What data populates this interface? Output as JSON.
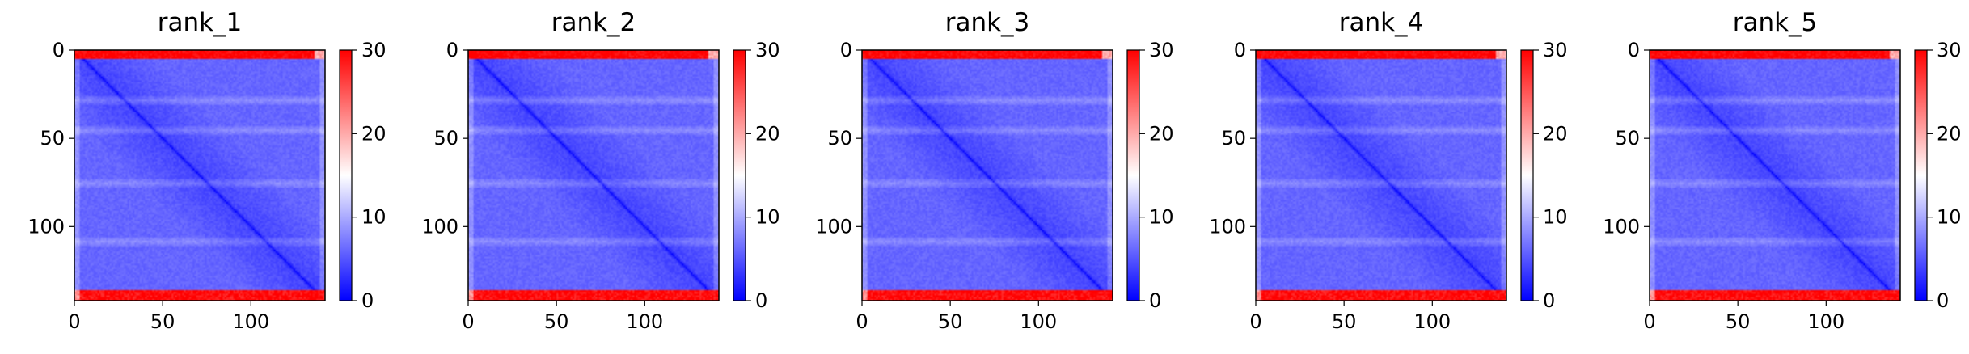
{
  "chart_data": [
    {
      "type": "heatmap",
      "title": "rank_1",
      "x_ticks": [
        "0",
        "50",
        "100"
      ],
      "y_ticks": [
        "0",
        "50",
        "100"
      ],
      "xlim": [
        0,
        142
      ],
      "ylim": [
        142,
        0
      ],
      "colorbar": {
        "min": 0,
        "max": 30,
        "ticks": [
          "0",
          "10",
          "20",
          "30"
        ],
        "colormap": "bwr"
      },
      "pattern": "blue field (~0–8) with bright diagonal band; red rows near top (rows 0–5) and bottom (rows 135–142) at ~30; faint lighter horizontal bands near rows 28, 45, 75, 108"
    },
    {
      "type": "heatmap",
      "title": "rank_2",
      "x_ticks": [
        "0",
        "50",
        "100"
      ],
      "y_ticks": [
        "0",
        "50",
        "100"
      ],
      "xlim": [
        0,
        142
      ],
      "ylim": [
        142,
        0
      ],
      "colorbar": {
        "min": 0,
        "max": 30,
        "ticks": [
          "0",
          "10",
          "20",
          "30"
        ],
        "colormap": "bwr"
      },
      "pattern": "blue field with diagonal; red top and bottom edge rows"
    },
    {
      "type": "heatmap",
      "title": "rank_3",
      "x_ticks": [
        "0",
        "50",
        "100"
      ],
      "y_ticks": [
        "0",
        "50",
        "100"
      ],
      "xlim": [
        0,
        142
      ],
      "ylim": [
        142,
        0
      ],
      "colorbar": {
        "min": 0,
        "max": 30,
        "ticks": [
          "0",
          "10",
          "20",
          "30"
        ],
        "colormap": "bwr"
      },
      "pattern": "blue field with diagonal; red top and bottom edge rows"
    },
    {
      "type": "heatmap",
      "title": "rank_4",
      "x_ticks": [
        "0",
        "50",
        "100"
      ],
      "y_ticks": [
        "0",
        "50",
        "100"
      ],
      "xlim": [
        0,
        142
      ],
      "ylim": [
        142,
        0
      ],
      "colorbar": {
        "min": 0,
        "max": 30,
        "ticks": [
          "0",
          "10",
          "20",
          "30"
        ],
        "colormap": "bwr"
      },
      "pattern": "blue field with diagonal; red top and bottom edge rows"
    },
    {
      "type": "heatmap",
      "title": "rank_5",
      "x_ticks": [
        "0",
        "50",
        "100"
      ],
      "y_ticks": [
        "0",
        "50",
        "100"
      ],
      "xlim": [
        0,
        142
      ],
      "ylim": [
        142,
        0
      ],
      "colorbar": {
        "min": 0,
        "max": 30,
        "ticks": [
          "0",
          "10",
          "20",
          "30"
        ],
        "colormap": "bwr"
      },
      "pattern": "blue field with diagonal; red top and bottom edge rows"
    }
  ],
  "colors": {
    "low": "#0000ff",
    "mid": "#ffffff",
    "high": "#ff0000"
  }
}
